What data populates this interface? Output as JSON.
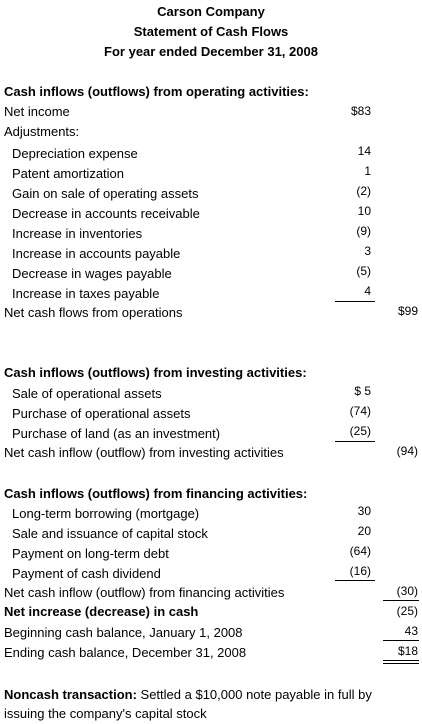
{
  "header": {
    "company": "Carson Company",
    "title": "Statement of Cash Flows",
    "period": "For year ended December 31, 2008"
  },
  "operating": {
    "heading": "Cash inflows (outflows) from operating activities:",
    "net_income_label": "Net income",
    "net_income_value": "$83",
    "adjustments_label": "Adjustments:",
    "items": [
      {
        "label": "Depreciation expense",
        "value": "14"
      },
      {
        "label": "Patent amortization",
        "value": "1"
      },
      {
        "label": "Gain on sale of operating assets",
        "value": "(2)"
      },
      {
        "label": "Decrease in accounts receivable",
        "value": "10"
      },
      {
        "label": "Increase in inventories",
        "value": "(9)"
      },
      {
        "label": "Increase in accounts payable",
        "value": "3"
      },
      {
        "label": "Decrease in wages payable",
        "value": "(5)"
      },
      {
        "label": "Increase in taxes payable",
        "value": "4"
      }
    ],
    "total_label": "Net cash flows from operations",
    "total_value": "$99"
  },
  "investing": {
    "heading": "Cash inflows (outflows) from investing activities:",
    "items": [
      {
        "label": "Sale of operational assets",
        "value": "$ 5"
      },
      {
        "label": "Purchase of operational assets",
        "value": "(74)"
      },
      {
        "label": "Purchase of land (as an investment)",
        "value": "(25)"
      }
    ],
    "total_label": "Net cash inflow (outflow) from investing activities",
    "total_value": "(94)"
  },
  "financing": {
    "heading": "Cash inflows (outflows) from financing activities:",
    "items": [
      {
        "label": "Long-term borrowing (mortgage)",
        "value": "30"
      },
      {
        "label": "Sale and issuance of capital stock",
        "value": "20"
      },
      {
        "label": "Payment on long-term debt",
        "value": "(64)"
      },
      {
        "label": "Payment of cash dividend",
        "value": "(16)"
      }
    ],
    "total_label": "Net cash inflow (outflow) from financing activities",
    "total_value": "(30)"
  },
  "summary": {
    "net_change_label": "Net increase (decrease) in cash",
    "net_change_value": "(25)",
    "beginning_label": "Beginning cash balance, January 1, 2008",
    "beginning_value": "43",
    "ending_label": "Ending cash balance, December 31, 2008",
    "ending_value": "$18"
  },
  "noncash": {
    "label": "Noncash transaction:",
    "text": " Settled a $10,000 note payable in full by issuing the company's capital stock"
  }
}
